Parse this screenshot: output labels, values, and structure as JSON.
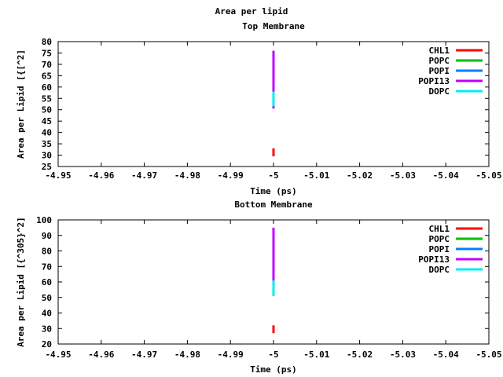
{
  "page_title": "Area per lipid",
  "chart_data": [
    {
      "type": "line",
      "title": "Top Membrane",
      "xlabel": "Time (ps)",
      "ylabel": "Area per Lipid [{[^2]",
      "xlim": [
        -4.95,
        -5.05
      ],
      "ylim": [
        25,
        80
      ],
      "x_ticks": [
        "-4.95",
        "-4.96",
        "-4.97",
        "-4.98",
        "-4.99",
        "-5",
        "-5.01",
        "-5.02",
        "-5.03",
        "-5.04",
        "-5.05"
      ],
      "y_ticks": [
        "25",
        "30",
        "35",
        "40",
        "45",
        "50",
        "55",
        "60",
        "65",
        "70",
        "75",
        "80"
      ],
      "legend_position": "top-right",
      "grid": false,
      "series": [
        {
          "name": "CHL1",
          "color": "#ff0000",
          "points": [
            [
              -5,
              29.5
            ],
            [
              -5,
              33
            ]
          ]
        },
        {
          "name": "POPC",
          "color": "#00c000",
          "points": []
        },
        {
          "name": "POPI",
          "color": "#0080ff",
          "points": []
        },
        {
          "name": "POPI13",
          "color": "#c000ff",
          "points": [
            [
              -5,
              50.5
            ],
            [
              -5,
              76
            ]
          ]
        },
        {
          "name": "DOPC",
          "color": "#00eeee",
          "points": [
            [
              -5,
              51.5
            ],
            [
              -5,
              58
            ]
          ]
        }
      ]
    },
    {
      "type": "line",
      "title": "Bottom Membrane",
      "xlabel": "Time (ps)",
      "ylabel": "Area per Lipid [{^305}^2]",
      "xlim": [
        -4.95,
        -5.05
      ],
      "ylim": [
        20,
        100
      ],
      "x_ticks": [
        "-4.95",
        "-4.96",
        "-4.97",
        "-4.98",
        "-4.99",
        "-5",
        "-5.01",
        "-5.02",
        "-5.03",
        "-5.04",
        "-5.05"
      ],
      "y_ticks": [
        "20",
        "30",
        "40",
        "50",
        "60",
        "70",
        "80",
        "90",
        "100"
      ],
      "legend_position": "top-right",
      "grid": false,
      "series": [
        {
          "name": "CHL1",
          "color": "#ff0000",
          "points": [
            [
              -5,
              27
            ],
            [
              -5,
              32
            ]
          ]
        },
        {
          "name": "POPC",
          "color": "#00c000",
          "points": []
        },
        {
          "name": "POPI",
          "color": "#0080ff",
          "points": []
        },
        {
          "name": "POPI13",
          "color": "#c000ff",
          "points": [
            [
              -5,
              60
            ],
            [
              -5,
              95
            ]
          ]
        },
        {
          "name": "DOPC",
          "color": "#00eeee",
          "points": [
            [
              -5,
              51
            ],
            [
              -5,
              61
            ]
          ]
        }
      ]
    }
  ]
}
